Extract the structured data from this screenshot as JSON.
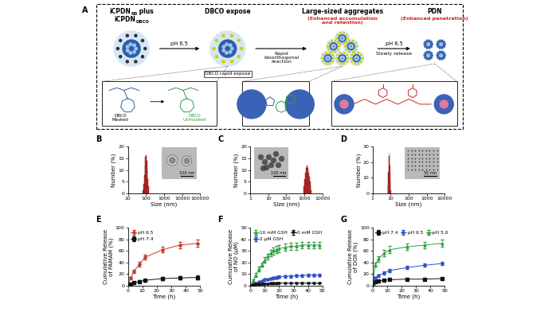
{
  "diagram": {
    "panel": "A",
    "stages": [
      {
        "label_lines": [
          [
            "iCPDN",
            {
              "sub": "N3"
            },
            " plus"
          ],
          [
            "iCPDN",
            {
              "sub": "DBCO"
            }
          ]
        ]
      },
      {
        "label_lines": [
          [
            "DBCO expose"
          ]
        ]
      },
      {
        "label_lines": [
          [
            "Large-sized aggregates"
          ]
        ],
        "note": "(Enhanced accumulation\nand retention)"
      },
      {
        "label_lines": [
          [
            "PDN"
          ]
        ],
        "note": "(Enhanced penetration)"
      }
    ],
    "arrows": [
      {
        "above": "pH 6.5"
      },
      {
        "below": "Rapid\nbioorthogonal\nreaction"
      },
      {
        "above": "pH 6.5",
        "below": "Slowly release"
      }
    ],
    "callout": "DBCO rapid expose",
    "masking": {
      "before": "DBCO\nMasked",
      "after": "DBCO\nUnmasked"
    }
  },
  "chart_data": [
    {
      "panel": "B",
      "type": "histogram",
      "x_label": "Size (nm)",
      "y_label": "Number (%)",
      "log": "x",
      "xlim": [
        10,
        100000
      ],
      "xticks": [
        10,
        100,
        1000,
        10000,
        100000
      ],
      "ylim": [
        0,
        20
      ],
      "yticks": [
        0,
        5,
        10,
        15,
        20
      ],
      "bins": [
        68,
        73,
        78,
        84,
        91,
        98,
        106,
        114,
        122,
        132,
        142
      ],
      "counts": [
        1.5,
        4,
        8,
        12,
        15.5,
        16.5,
        14,
        10,
        6,
        3
      ],
      "color": "#d93a3a",
      "scale_bar": "100 nm"
    },
    {
      "panel": "C",
      "type": "histogram",
      "x_label": "Size (nm)",
      "y_label": "Number (%)",
      "log": "x",
      "xlim": [
        1,
        10000
      ],
      "xticks": [
        1,
        10,
        100,
        1000,
        10000
      ],
      "ylim": [
        0,
        20
      ],
      "yticks": [
        0,
        5,
        10,
        15,
        20
      ],
      "bins": [
        900,
        990,
        1090,
        1200,
        1320,
        1450,
        1600,
        1760,
        1930,
        2120,
        2330,
        2570
      ],
      "counts": [
        3,
        6,
        9,
        11,
        12,
        11,
        9,
        7,
        5,
        3,
        1.5
      ],
      "color": "#d93a3a",
      "scale_bar": "100 nm"
    },
    {
      "panel": "D",
      "type": "histogram",
      "x_label": "Size (nm)",
      "y_label": "Number (%)",
      "log": "x",
      "xlim": [
        1,
        10000
      ],
      "xticks": [
        1,
        10,
        100,
        1000,
        10000
      ],
      "ylim": [
        0,
        30
      ],
      "yticks": [
        0,
        10,
        20,
        30
      ],
      "bins": [
        6.8,
        7.3,
        7.8,
        8.3,
        8.9,
        9.5,
        10.1,
        10.8
      ],
      "counts": [
        5,
        14,
        24,
        26,
        18,
        8,
        2
      ],
      "color": "#d93a3a",
      "scale_bar": "50 nm"
    },
    {
      "panel": "E",
      "type": "line",
      "x_label": "Time (h)",
      "y_label": "Cumulative Release\nof PAMAM (%)",
      "xlim": [
        0,
        50
      ],
      "xticks": [
        0,
        10,
        20,
        30,
        40,
        50
      ],
      "ylim": [
        0,
        100
      ],
      "yticks": [
        0,
        20,
        40,
        60,
        80,
        100
      ],
      "legend": "upper left",
      "x": [
        0,
        2,
        4,
        8,
        12,
        24,
        36,
        48
      ],
      "series": [
        {
          "name": "pH 6.5",
          "color": "#c0392b",
          "marker": "circle",
          "line_style": "solid",
          "values": [
            0,
            13,
            24,
            37,
            49,
            62,
            70,
            73
          ],
          "errors": [
            0,
            2,
            3,
            4,
            4,
            5,
            6,
            6
          ]
        },
        {
          "name": "pH 7.4",
          "color": "#111111",
          "marker": "square",
          "line_style": "solid",
          "values": [
            0,
            3,
            5,
            7,
            9,
            12,
            13,
            14
          ],
          "errors": [
            0,
            1,
            1,
            2,
            2,
            3,
            3,
            3
          ]
        }
      ]
    },
    {
      "panel": "F",
      "type": "line",
      "x_label": "Time (h)",
      "y_label": "Cumulative Release\nof NO (μM)",
      "xlim": [
        0,
        50
      ],
      "xticks": [
        0,
        10,
        20,
        30,
        40,
        50
      ],
      "ylim": [
        0,
        50
      ],
      "yticks": [
        0,
        10,
        20,
        30,
        40,
        50
      ],
      "legend": "upper left",
      "x": [
        0,
        2,
        4,
        6,
        8,
        10,
        12,
        14,
        16,
        18,
        20,
        24,
        28,
        32,
        36,
        40,
        44,
        48
      ],
      "series": [
        {
          "name": "10 mM GSH",
          "color": "#2e9e3e",
          "marker": "triangle_up",
          "line_style": "solid",
          "values": [
            0,
            4,
            9,
            14,
            18,
            22,
            25,
            28,
            30,
            31,
            32,
            33,
            34,
            34,
            35,
            35,
            35,
            35
          ],
          "errors": [
            0,
            1,
            1.5,
            2,
            2,
            2.5,
            2.5,
            3,
            3,
            3,
            3,
            3,
            3,
            3,
            3,
            3,
            3,
            3
          ]
        },
        {
          "name": "2 μM GSH",
          "color": "#3050c8",
          "marker": "circle",
          "line_style": "solid",
          "values": [
            0,
            1,
            2,
            3,
            4,
            5,
            5.5,
            6,
            6.5,
            7,
            7.5,
            8,
            8,
            8.5,
            8.5,
            9,
            9,
            9
          ],
          "errors": [
            0,
            0.5,
            0.5,
            0.5,
            0.8,
            0.8,
            0.8,
            1,
            1,
            1,
            1,
            1,
            1,
            1,
            1,
            1,
            1,
            1
          ]
        },
        {
          "name": "0 mM GSH",
          "color": "#111111",
          "marker": "triangle_down",
          "line_style": "solid",
          "values": [
            0,
            0.5,
            1,
            1,
            1.2,
            1.5,
            1.5,
            1.7,
            1.8,
            1.8,
            2,
            2,
            2,
            2,
            2,
            2,
            2,
            2
          ],
          "errors": [
            0,
            0.3,
            0.3,
            0.3,
            0.3,
            0.3,
            0.3,
            0.3,
            0.3,
            0.3,
            0.3,
            0.3,
            0.3,
            0.3,
            0.3,
            0.3,
            0.3,
            0.3
          ]
        }
      ]
    },
    {
      "panel": "G",
      "type": "line",
      "x_label": "Time (h)",
      "y_label": "Cumulative Release\nof DOX (%)",
      "xlim": [
        0,
        50
      ],
      "xticks": [
        0,
        10,
        20,
        30,
        40,
        50
      ],
      "ylim": [
        0,
        100
      ],
      "yticks": [
        0,
        20,
        40,
        60,
        80,
        100
      ],
      "legend": "upper left",
      "x": [
        0,
        2,
        4,
        8,
        12,
        24,
        36,
        48
      ],
      "series": [
        {
          "name": "pH 7.4",
          "color": "#111111",
          "marker": "square",
          "line_style": "solid",
          "values": [
            0,
            6,
            8,
            9,
            10,
            11,
            11,
            12
          ],
          "errors": [
            0,
            1,
            1,
            1,
            1,
            1,
            1,
            1
          ]
        },
        {
          "name": "pH 6.5",
          "color": "#3050c8",
          "marker": "circle",
          "line_style": "solid",
          "values": [
            0,
            13,
            17,
            22,
            26,
            31,
            35,
            38
          ],
          "errors": [
            0,
            2,
            2,
            3,
            3,
            3,
            3,
            3
          ]
        },
        {
          "name": "pH 5.0",
          "color": "#2e9e3e",
          "marker": "triangle_up",
          "line_style": "solid",
          "values": [
            0,
            36,
            46,
            56,
            62,
            67,
            70,
            73
          ],
          "errors": [
            0,
            4,
            5,
            5,
            6,
            6,
            6,
            6
          ]
        }
      ]
    }
  ]
}
